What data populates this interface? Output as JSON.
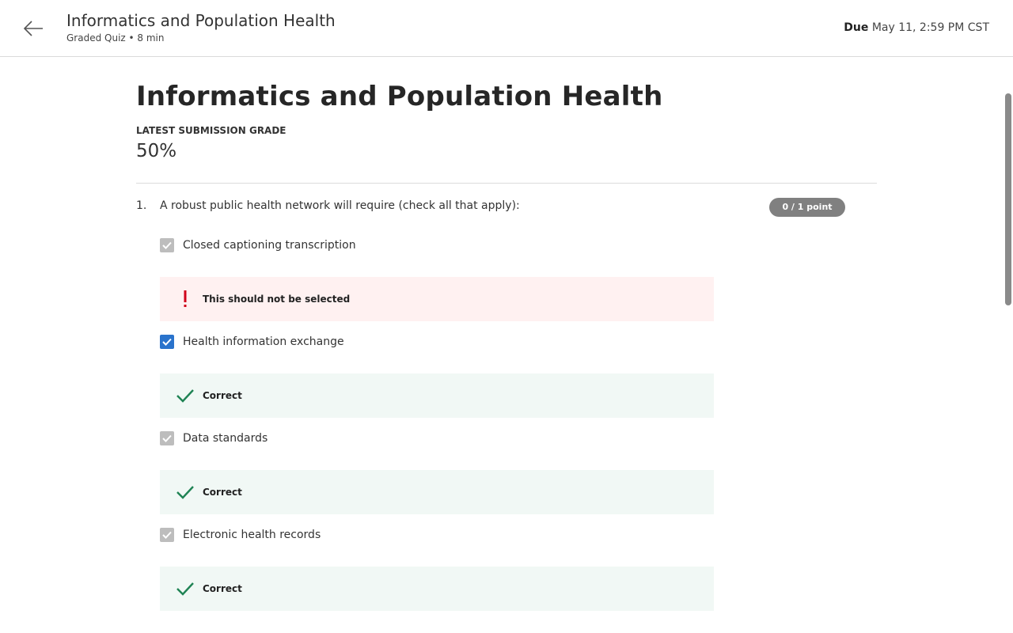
{
  "header": {
    "title": "Informatics and Population Health",
    "subtitle": "Graded Quiz • 8 min",
    "due_label": "Due",
    "due_value": "May 11, 2:59 PM CST"
  },
  "main": {
    "title": "Informatics and Population Health",
    "grade_label": "LATEST SUBMISSION GRADE",
    "grade_value": "50%"
  },
  "question": {
    "number": "1.",
    "text": "A robust public health network will require (check all that apply):",
    "points": "0 / 1 point",
    "options": [
      {
        "label": "Closed captioning transcription",
        "checked": false,
        "feedback": "This should not be selected",
        "feedback_type": "incorrect"
      },
      {
        "label": "Health information exchange",
        "checked": true,
        "feedback": "Correct",
        "feedback_type": "correct"
      },
      {
        "label": "Data standards",
        "checked": false,
        "feedback": "Correct",
        "feedback_type": "correct"
      },
      {
        "label": "Electronic health records",
        "checked": false,
        "feedback": "Correct",
        "feedback_type": "correct"
      }
    ]
  },
  "colors": {
    "checkbox_checked": "#2a73cc",
    "checkbox_disabled": "#bdbdbd",
    "error_red": "#d0021b",
    "success_green": "#1f8354"
  }
}
